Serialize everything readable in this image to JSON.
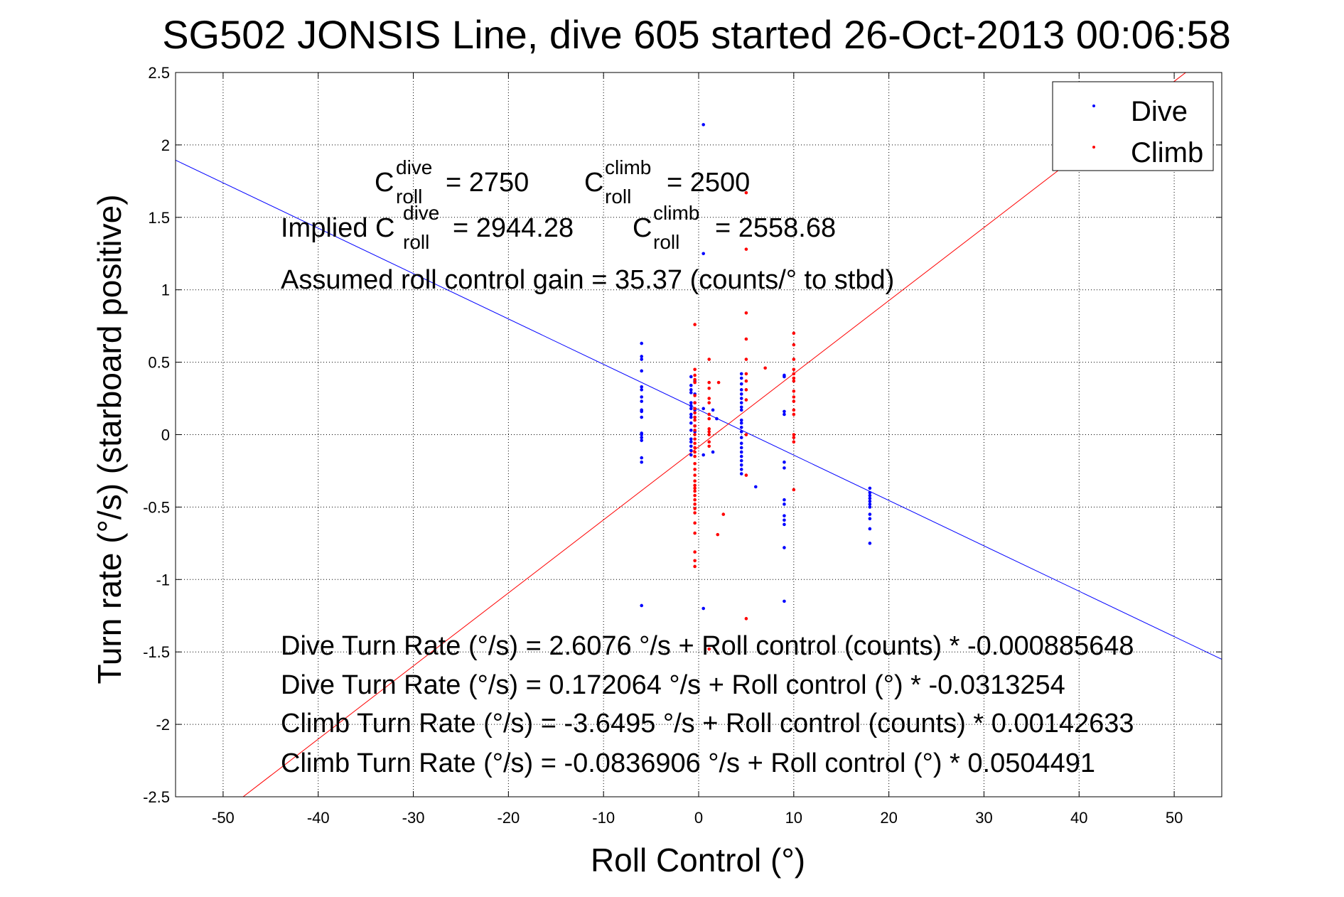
{
  "chart_data": {
    "type": "scatter",
    "title": "SG502 JONSIS Line, dive 605 started 26-Oct-2013 00:06:58",
    "xlabel": "Roll Control (°)",
    "ylabel": "Turn rate (°/s)  (starboard positive)",
    "xlim": [
      -55,
      55
    ],
    "ylim": [
      -2.5,
      2.5
    ],
    "grid": true,
    "legend_position": "top-right",
    "xticks": [
      "-50",
      "-40",
      "-30",
      "-20",
      "-10",
      "0",
      "10",
      "20",
      "30",
      "40",
      "50"
    ],
    "xtick_values": [
      -50,
      -40,
      -30,
      -20,
      -10,
      0,
      10,
      20,
      30,
      40,
      50
    ],
    "yticks": [
      "2.5",
      "2",
      "1.5",
      "1",
      "0.5",
      "0",
      "-0.5",
      "-1",
      "-1.5",
      "-2",
      "-2.5"
    ],
    "ytick_values": [
      2.5,
      2,
      1.5,
      1,
      0.5,
      0,
      -0.5,
      -1,
      -1.5,
      -2,
      -2.5
    ],
    "series": [
      {
        "name": "Dive",
        "color": "#0000ff",
        "fit": {
          "intercept": 0.172064,
          "slope": -0.0313254
        },
        "points": [
          [
            -6,
            0.63
          ],
          [
            -6,
            0.54
          ],
          [
            -6,
            0.52
          ],
          [
            -6,
            0.44
          ],
          [
            -6,
            0.33
          ],
          [
            -6,
            0.31
          ],
          [
            -6,
            0.26
          ],
          [
            -6,
            0.23
          ],
          [
            -6,
            0.17
          ],
          [
            -6,
            0.16
          ],
          [
            -6,
            0.12
          ],
          [
            -6,
            0.01
          ],
          [
            -6,
            0.0
          ],
          [
            -6,
            -0.02
          ],
          [
            -6,
            -0.04
          ],
          [
            -6,
            -0.16
          ],
          [
            -6,
            -0.19
          ],
          [
            -6,
            -1.18
          ],
          [
            -0.8,
            0.4
          ],
          [
            -0.8,
            0.34
          ],
          [
            -0.8,
            0.31
          ],
          [
            -0.8,
            0.29
          ],
          [
            -0.8,
            0.22
          ],
          [
            -0.8,
            0.2
          ],
          [
            -0.8,
            0.18
          ],
          [
            -0.8,
            0.14
          ],
          [
            -0.8,
            0.12
          ],
          [
            -0.8,
            0.08
          ],
          [
            -0.8,
            0.03
          ],
          [
            -0.8,
            -0.03
          ],
          [
            -0.8,
            -0.05
          ],
          [
            -0.8,
            -0.08
          ],
          [
            -0.8,
            -0.11
          ],
          [
            -0.8,
            -0.14
          ],
          [
            -0.4,
            0.37
          ],
          [
            -0.4,
            0.28
          ],
          [
            -0.4,
            0.22
          ],
          [
            -0.4,
            0.17
          ],
          [
            -0.4,
            0.12
          ],
          [
            -0.4,
            0.06
          ],
          [
            -0.4,
            0.02
          ],
          [
            0.5,
            2.14
          ],
          [
            0.5,
            1.25
          ],
          [
            0.5,
            -1.2
          ],
          [
            0.5,
            0.18
          ],
          [
            1.5,
            0.17
          ],
          [
            1.9,
            0.11
          ],
          [
            1.5,
            -0.12
          ],
          [
            0.5,
            -0.14
          ],
          [
            6,
            -0.36
          ],
          [
            4.5,
            0.42
          ],
          [
            4.5,
            0.39
          ],
          [
            4.5,
            0.35
          ],
          [
            4.5,
            0.31
          ],
          [
            4.5,
            0.28
          ],
          [
            4.5,
            0.25
          ],
          [
            4.5,
            0.22
          ],
          [
            4.5,
            0.19
          ],
          [
            4.5,
            0.17
          ],
          [
            4.5,
            0.1
          ],
          [
            4.5,
            0.08
          ],
          [
            4.5,
            0.05
          ],
          [
            4.5,
            0.02
          ],
          [
            4.5,
            -0.02
          ],
          [
            4.5,
            -0.06
          ],
          [
            4.5,
            -0.09
          ],
          [
            4.5,
            -0.12
          ],
          [
            4.5,
            -0.15
          ],
          [
            4.5,
            -0.18
          ],
          [
            4.5,
            -0.21
          ],
          [
            4.5,
            -0.24
          ],
          [
            4.5,
            -0.27
          ],
          [
            9,
            0.41
          ],
          [
            9,
            0.4
          ],
          [
            9,
            0.16
          ],
          [
            9,
            0.14
          ],
          [
            9,
            -0.19
          ],
          [
            9,
            -0.23
          ],
          [
            9,
            -0.45
          ],
          [
            9,
            -0.48
          ],
          [
            9,
            -0.56
          ],
          [
            9,
            -0.59
          ],
          [
            9,
            -0.62
          ],
          [
            9,
            -0.78
          ],
          [
            9,
            -1.15
          ],
          [
            18,
            -0.37
          ],
          [
            18,
            -0.4
          ],
          [
            18,
            -0.42
          ],
          [
            18,
            -0.44
          ],
          [
            18,
            -0.46
          ],
          [
            18,
            -0.48
          ],
          [
            18,
            -0.5
          ],
          [
            18,
            -0.55
          ],
          [
            18,
            -0.58
          ],
          [
            18,
            -0.65
          ],
          [
            18,
            -0.75
          ]
        ]
      },
      {
        "name": "Climb",
        "color": "#ff0000",
        "fit": {
          "intercept": -0.0836906,
          "slope": 0.0504491
        },
        "points": [
          [
            -0.4,
            0.76
          ],
          [
            -0.4,
            0.45
          ],
          [
            -0.4,
            0.41
          ],
          [
            -0.4,
            0.38
          ],
          [
            -0.4,
            0.36
          ],
          [
            -0.4,
            0.27
          ],
          [
            -0.4,
            0.22
          ],
          [
            -0.4,
            0.18
          ],
          [
            -0.4,
            0.15
          ],
          [
            -0.4,
            0.12
          ],
          [
            -0.4,
            0.1
          ],
          [
            -0.4,
            0.06
          ],
          [
            -0.4,
            0.03
          ],
          [
            -0.4,
            0.0
          ],
          [
            -0.4,
            -0.03
          ],
          [
            -0.4,
            -0.06
          ],
          [
            -0.4,
            -0.09
          ],
          [
            -0.4,
            -0.12
          ],
          [
            -0.4,
            -0.15
          ],
          [
            -0.4,
            -0.2
          ],
          [
            -0.4,
            -0.24
          ],
          [
            -0.4,
            -0.28
          ],
          [
            -0.4,
            -0.32
          ],
          [
            -0.4,
            -0.35
          ],
          [
            -0.4,
            -0.37
          ],
          [
            -0.4,
            -0.39
          ],
          [
            -0.4,
            -0.42
          ],
          [
            -0.4,
            -0.45
          ],
          [
            -0.4,
            -0.48
          ],
          [
            -0.4,
            -0.51
          ],
          [
            -0.4,
            -0.54
          ],
          [
            -0.4,
            -0.61
          ],
          [
            -0.4,
            -0.68
          ],
          [
            -0.4,
            -0.81
          ],
          [
            -0.4,
            -0.87
          ],
          [
            -0.4,
            -0.91
          ],
          [
            1.1,
            0.52
          ],
          [
            1.1,
            0.36
          ],
          [
            1.1,
            0.32
          ],
          [
            1.1,
            0.25
          ],
          [
            1.1,
            0.22
          ],
          [
            1.1,
            0.14
          ],
          [
            1.1,
            0.11
          ],
          [
            1.1,
            0.04
          ],
          [
            1.1,
            0.02
          ],
          [
            1.1,
            0.0
          ],
          [
            1.1,
            -0.05
          ],
          [
            1.1,
            -0.08
          ],
          [
            1.1,
            -1.48
          ],
          [
            2.1,
            0.36
          ],
          [
            2.6,
            -0.55
          ],
          [
            2.0,
            -0.69
          ],
          [
            7,
            0.46
          ],
          [
            5,
            1.67
          ],
          [
            5,
            1.28
          ],
          [
            5,
            0.84
          ],
          [
            5,
            0.66
          ],
          [
            5,
            0.52
          ],
          [
            5,
            0.42
          ],
          [
            5,
            0.37
          ],
          [
            5,
            0.31
          ],
          [
            5,
            0.24
          ],
          [
            5,
            0.0
          ],
          [
            5,
            -0.28
          ],
          [
            5,
            -1.27
          ],
          [
            10,
            0.7
          ],
          [
            10,
            0.62
          ],
          [
            10,
            0.52
          ],
          [
            10,
            0.45
          ],
          [
            10,
            0.42
          ],
          [
            10,
            0.39
          ],
          [
            10,
            0.37
          ],
          [
            10,
            0.3
          ],
          [
            10,
            0.26
          ],
          [
            10,
            0.23
          ],
          [
            10,
            0.17
          ],
          [
            10,
            0.14
          ],
          [
            10,
            0.0
          ],
          [
            10,
            -0.02
          ],
          [
            10,
            -0.05
          ],
          [
            10,
            -0.38
          ]
        ]
      }
    ],
    "annotations": {
      "c_dive": {
        "base": "C",
        "sup": "dive",
        "sub": "roll",
        "value": "= 2750"
      },
      "c_climb": {
        "base": "C",
        "sup": "climb",
        "sub": "roll",
        "value": "= 2500"
      },
      "implied_prefix": "Implied C",
      "implied_dive": {
        "sup": "dive",
        "sub": "roll",
        "value": "= 2944.28"
      },
      "implied_climb": {
        "base": "C",
        "sup": "climb",
        "sub": "roll",
        "value": "= 2558.68"
      },
      "gain": "Assumed roll control gain = 35.37 (counts/° to stbd)",
      "eq1": "Dive Turn Rate (°/s) = 2.6076 °/s + Roll control (counts) * -0.000885648",
      "eq2": "Dive Turn Rate (°/s) = 0.172064 °/s + Roll control (°) * -0.0313254",
      "eq3": "Climb Turn Rate (°/s) = -3.6495 °/s + Roll control (counts) * 0.00142633",
      "eq4": "Climb Turn Rate (°/s) = -0.0836906 °/s + Roll control (°) * 0.0504491"
    }
  }
}
